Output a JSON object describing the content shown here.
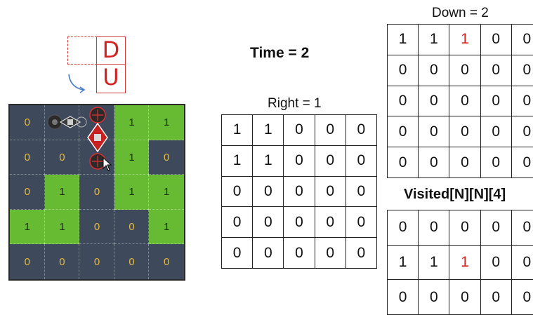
{
  "legend": {
    "top_letter": "D",
    "bottom_letter": "U"
  },
  "time_label": "Time = 2",
  "board": {
    "colors": {
      "water": "#3e4a5c",
      "land": "#66bb33",
      "water_text": "#e8b93c"
    },
    "cells": [
      [
        {
          "v": "0",
          "t": "water"
        },
        {
          "v": "",
          "t": "water"
        },
        {
          "v": "",
          "t": "water"
        },
        {
          "v": "1",
          "t": "land"
        },
        {
          "v": "1",
          "t": "land"
        }
      ],
      [
        {
          "v": "0",
          "t": "water"
        },
        {
          "v": "0",
          "t": "water"
        },
        {
          "v": "",
          "t": "water"
        },
        {
          "v": "1",
          "t": "land"
        },
        {
          "v": "0",
          "t": "water"
        }
      ],
      [
        {
          "v": "0",
          "t": "water"
        },
        {
          "v": "1",
          "t": "land"
        },
        {
          "v": "0",
          "t": "water"
        },
        {
          "v": "1",
          "t": "land"
        },
        {
          "v": "1",
          "t": "land"
        }
      ],
      [
        {
          "v": "1",
          "t": "land"
        },
        {
          "v": "1",
          "t": "land"
        },
        {
          "v": "0",
          "t": "water"
        },
        {
          "v": "0",
          "t": "water"
        },
        {
          "v": "1",
          "t": "land"
        }
      ],
      [
        {
          "v": "0",
          "t": "water"
        },
        {
          "v": "0",
          "t": "water"
        },
        {
          "v": "0",
          "t": "water"
        },
        {
          "v": "0",
          "t": "water"
        },
        {
          "v": "0",
          "t": "water"
        }
      ]
    ]
  },
  "right_table": {
    "caption": "Right = 1",
    "rows": [
      [
        "1",
        "1",
        "0",
        "0",
        "0"
      ],
      [
        "1",
        "1",
        "0",
        "0",
        "0"
      ],
      [
        "0",
        "0",
        "0",
        "0",
        "0"
      ],
      [
        "0",
        "0",
        "0",
        "0",
        "0"
      ],
      [
        "0",
        "0",
        "0",
        "0",
        "0"
      ]
    ]
  },
  "down_table": {
    "caption": "Down = 2",
    "rows": [
      [
        "1",
        "1",
        "1",
        "0",
        "0"
      ],
      [
        "0",
        "0",
        "0",
        "0",
        "0"
      ],
      [
        "0",
        "0",
        "0",
        "0",
        "0"
      ],
      [
        "0",
        "0",
        "0",
        "0",
        "0"
      ],
      [
        "0",
        "0",
        "0",
        "0",
        "0"
      ]
    ],
    "highlight": [
      [
        0,
        2
      ]
    ]
  },
  "visited_table": {
    "caption": "Visited[N][N][4]",
    "rows": [
      [
        "0",
        "0",
        "0",
        "0",
        "0"
      ],
      [
        "1",
        "1",
        "1",
        "0",
        "0"
      ],
      [
        "0",
        "0",
        "0",
        "0",
        "0"
      ]
    ],
    "highlight": [
      [
        1,
        2
      ]
    ]
  },
  "highlight_color": "#d42222"
}
